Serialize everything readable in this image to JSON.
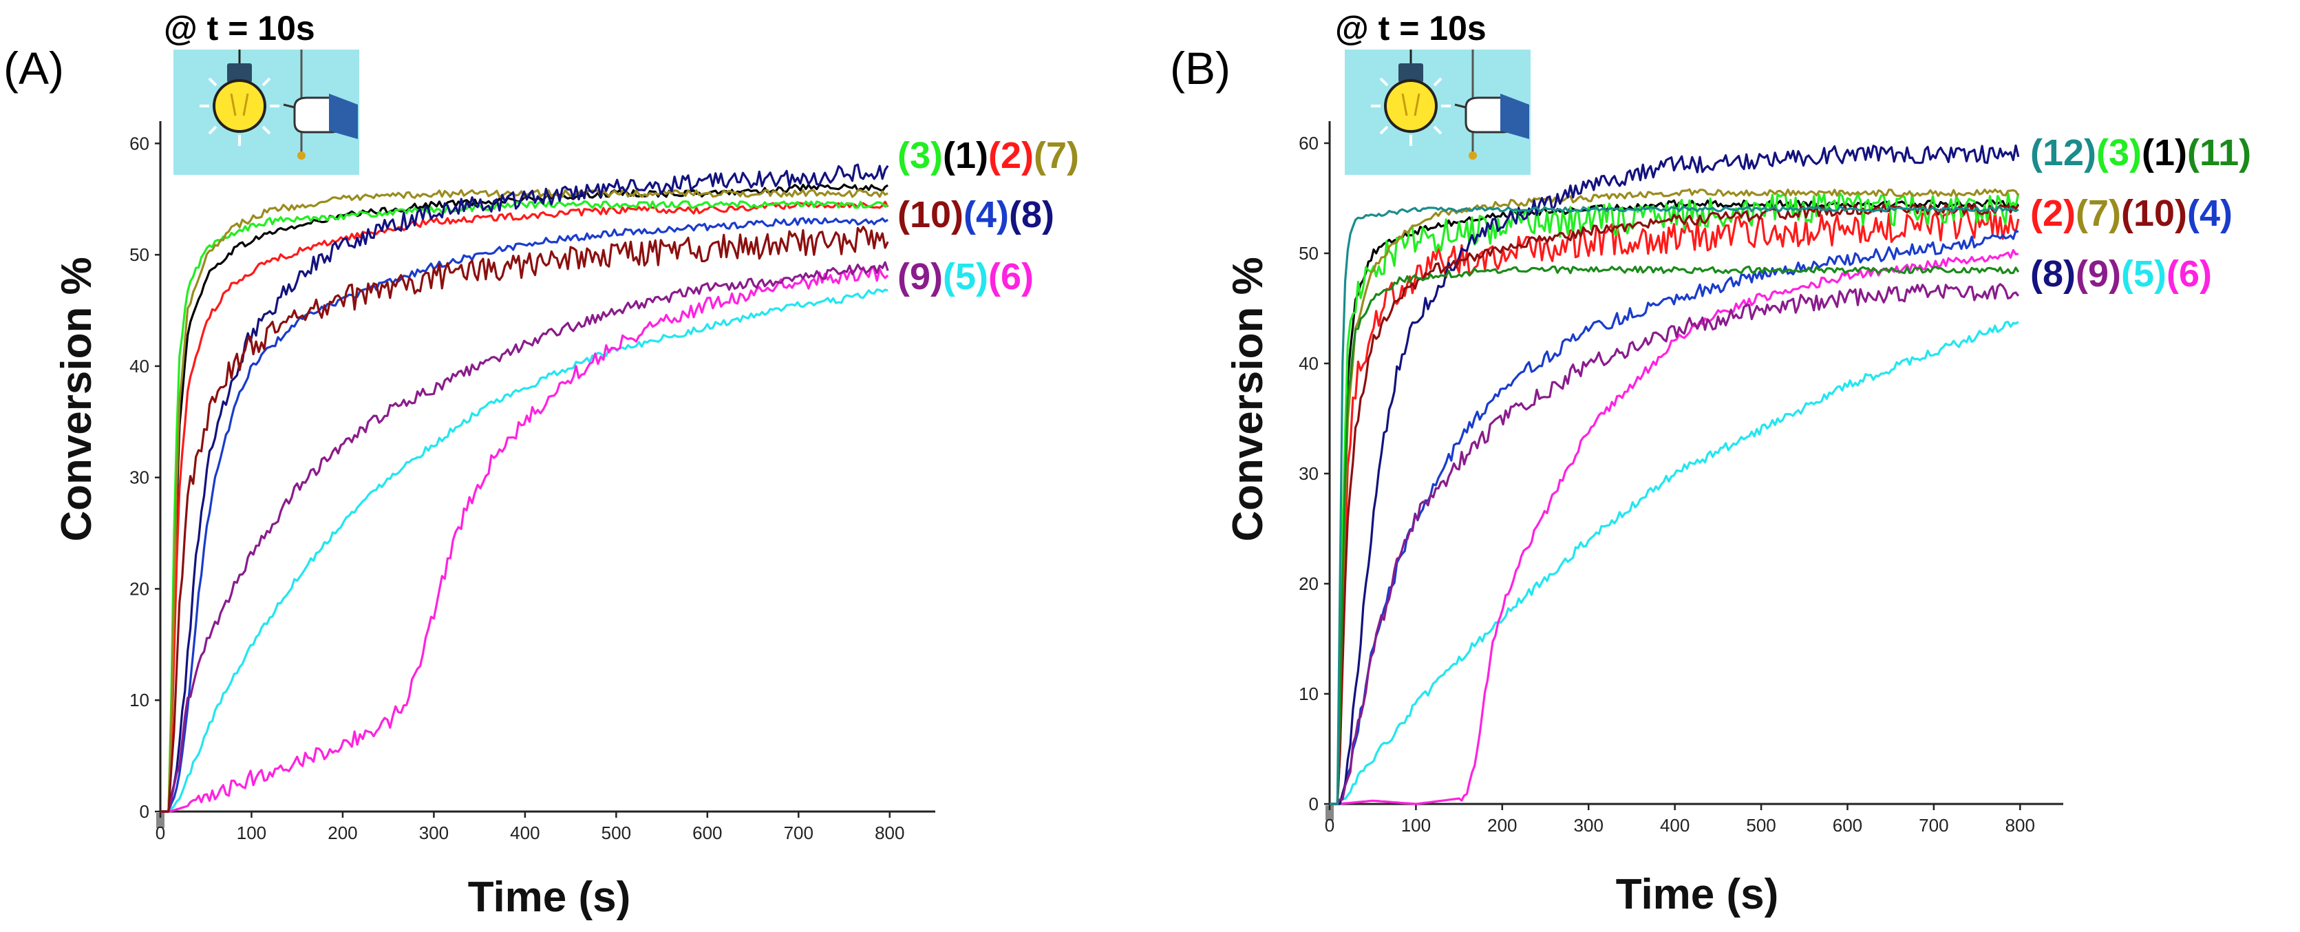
{
  "colors": {
    "axis": "#222222",
    "panel_bg": "#9ee6ec",
    "bulb": "#ffe52e",
    "s1": "#000000",
    "s2": "#ff1a1a",
    "s3": "#22ee22",
    "s4": "#1a3ccc",
    "s5": "#22e6f0",
    "s6": "#ff22e0",
    "s7": "#9a8c1e",
    "s8": "#13127f",
    "s9": "#8a1c8c",
    "s10": "#8c0f0f",
    "s11": "#1a8a1a",
    "s12": "#1a8c8c"
  },
  "icons": {
    "bulb": "light-bulb-icon",
    "hand": "hand-pull-switch-icon"
  },
  "chart_data": [
    {
      "type": "line",
      "panel_label": "(A)",
      "irradiation_label": "@ t = 10s",
      "xlabel": "Time (s)",
      "ylabel": "Conversion %",
      "xlim": [
        0,
        850
      ],
      "ylim": [
        0,
        62
      ],
      "xticks": [
        0,
        100,
        200,
        300,
        400,
        500,
        600,
        700,
        800
      ],
      "yticks": [
        0,
        10,
        20,
        30,
        40,
        50,
        60
      ],
      "legend_rows": [
        [
          {
            "text": "(3)",
            "color": "#22ee22"
          },
          {
            "text": "(1)",
            "color": "#000000"
          },
          {
            "text": "(2)",
            "color": "#ff1a1a"
          },
          {
            "text": "(7)",
            "color": "#9a8c1e"
          }
        ],
        [
          {
            "text": "(10)",
            "color": "#8c0f0f"
          },
          {
            "text": "(4)",
            "color": "#1a3ccc"
          },
          {
            "text": "(8)",
            "color": "#13127f"
          }
        ],
        [
          {
            "text": "(9)",
            "color": "#8a1c8c"
          },
          {
            "text": "(5)",
            "color": "#22e6f0"
          },
          {
            "text": "(6)",
            "color": "#ff22e0"
          }
        ]
      ],
      "series": [
        {
          "name": "(1)",
          "color": "#000000",
          "x": [
            0,
            10,
            15,
            20,
            30,
            50,
            80,
            120,
            200,
            300,
            400,
            500,
            600,
            700,
            800
          ],
          "y": [
            0,
            0,
            18,
            34,
            43,
            48,
            50.5,
            52,
            53.5,
            54.5,
            55,
            55.5,
            55.5,
            56,
            56
          ],
          "noise": 0.3
        },
        {
          "name": "(2)",
          "color": "#ff1a1a",
          "x": [
            0,
            10,
            15,
            20,
            30,
            50,
            80,
            120,
            200,
            300,
            400,
            500,
            600,
            700,
            800
          ],
          "y": [
            0,
            0,
            14,
            28,
            38,
            44,
            47.5,
            49.5,
            51.5,
            53,
            53.5,
            54,
            54,
            54.5,
            54.5
          ],
          "noise": 0.3
        },
        {
          "name": "(3)",
          "color": "#22ee22",
          "x": [
            0,
            10,
            15,
            20,
            30,
            50,
            80,
            120,
            200,
            300,
            400,
            500,
            600,
            700,
            800
          ],
          "y": [
            0,
            0,
            25,
            40,
            47,
            50.5,
            52,
            53,
            53.5,
            54,
            54.5,
            54.5,
            54.5,
            54.5,
            54.5
          ],
          "noise": 0.3
        },
        {
          "name": "(4)",
          "color": "#1a3ccc",
          "x": [
            0,
            10,
            20,
            30,
            40,
            50,
            60,
            80,
            100,
            150,
            200,
            300,
            400,
            500,
            600,
            700,
            800
          ],
          "y": [
            0,
            0,
            3,
            9,
            18,
            25,
            30,
            36,
            40,
            44,
            46,
            49,
            51,
            52,
            52.5,
            53,
            53
          ],
          "noise": 0.3
        },
        {
          "name": "(5)",
          "color": "#22e6f0",
          "x": [
            0,
            10,
            20,
            40,
            60,
            100,
            150,
            200,
            250,
            300,
            350,
            400,
            450,
            500,
            550,
            600,
            650,
            700,
            750,
            800
          ],
          "y": [
            0,
            0,
            1,
            5,
            9,
            15,
            21,
            26,
            30,
            33,
            36,
            38,
            40,
            41.5,
            42.5,
            43.5,
            44.5,
            45.5,
            46,
            47
          ],
          "noise": 0.3
        },
        {
          "name": "(6)",
          "color": "#ff22e0",
          "x": [
            0,
            10,
            30,
            50,
            100,
            150,
            200,
            250,
            270,
            280,
            290,
            300,
            320,
            340,
            360,
            380,
            400,
            450,
            500,
            550,
            600,
            650,
            700,
            750,
            800
          ],
          "y": [
            0,
            0,
            0.5,
            1,
            3,
            4.5,
            6,
            8,
            10,
            12,
            15,
            18,
            24,
            28,
            31,
            33,
            35,
            39,
            42,
            44,
            45.5,
            46.5,
            47.5,
            48,
            48.5
          ],
          "noise": 0.7
        },
        {
          "name": "(7)",
          "color": "#9a8c1e",
          "x": [
            0,
            10,
            15,
            20,
            30,
            50,
            80,
            120,
            200,
            300,
            400,
            500,
            600,
            700,
            800
          ],
          "y": [
            0,
            0,
            20,
            36,
            45,
            50,
            52.5,
            54,
            55,
            55.5,
            55.5,
            55.5,
            55.5,
            55.5,
            55.5
          ],
          "noise": 0.3
        },
        {
          "name": "(8)",
          "color": "#13127f",
          "x": [
            0,
            10,
            20,
            30,
            40,
            50,
            60,
            80,
            100,
            150,
            200,
            300,
            400,
            500,
            600,
            700,
            800
          ],
          "y": [
            0,
            0,
            5,
            14,
            24,
            30,
            34,
            39,
            43,
            48,
            51,
            54,
            55,
            56,
            56.5,
            57,
            57.5
          ],
          "noise": 0.8
        },
        {
          "name": "(9)",
          "color": "#8a1c8c",
          "x": [
            0,
            10,
            20,
            30,
            50,
            80,
            100,
            150,
            200,
            250,
            300,
            400,
            500,
            600,
            700,
            800
          ],
          "y": [
            0,
            0,
            4,
            10,
            15,
            20,
            23,
            29,
            33,
            36,
            38,
            42,
            45,
            47,
            48,
            49
          ],
          "noise": 0.5
        },
        {
          "name": "(10)",
          "color": "#8c0f0f",
          "x": [
            0,
            10,
            15,
            20,
            30,
            50,
            80,
            100,
            150,
            200,
            300,
            400,
            500,
            600,
            700,
            800
          ],
          "y": [
            0,
            0,
            8,
            18,
            28,
            35,
            40,
            42,
            44,
            46,
            48,
            49,
            50,
            50.5,
            51,
            51.5
          ],
          "noise": 1.2
        }
      ]
    },
    {
      "type": "line",
      "panel_label": "(B)",
      "irradiation_label": "@ t = 10s",
      "xlabel": "Time (s)",
      "ylabel": "Conversion %",
      "xlim": [
        0,
        850
      ],
      "ylim": [
        0,
        62
      ],
      "xticks": [
        0,
        100,
        200,
        300,
        400,
        500,
        600,
        700,
        800
      ],
      "yticks": [
        0,
        10,
        20,
        30,
        40,
        50,
        60
      ],
      "legend_rows": [
        [
          {
            "text": "(12)",
            "color": "#1a8c8c"
          },
          {
            "text": "(3)",
            "color": "#22ee22"
          },
          {
            "text": "(1)",
            "color": "#000000"
          },
          {
            "text": "(11)",
            "color": "#1a8a1a"
          }
        ],
        [
          {
            "text": "(2)",
            "color": "#ff1a1a"
          },
          {
            "text": "(7)",
            "color": "#9a8c1e"
          },
          {
            "text": "(10)",
            "color": "#8c0f0f"
          },
          {
            "text": "(4)",
            "color": "#1a3ccc"
          }
        ],
        [
          {
            "text": "(8)",
            "color": "#13127f"
          },
          {
            "text": "(9)",
            "color": "#8a1c8c"
          },
          {
            "text": "(5)",
            "color": "#22e6f0"
          },
          {
            "text": "(6)",
            "color": "#ff22e0"
          }
        ]
      ],
      "series": [
        {
          "name": "(1)",
          "color": "#000000",
          "x": [
            0,
            10,
            15,
            20,
            30,
            50,
            80,
            120,
            200,
            300,
            400,
            500,
            600,
            700,
            800
          ],
          "y": [
            0,
            0,
            20,
            38,
            46,
            50,
            51.5,
            52.5,
            53.5,
            54,
            54.5,
            54.5,
            54.5,
            54.5,
            54.5
          ],
          "noise": 0.3
        },
        {
          "name": "(2)",
          "color": "#ff1a1a",
          "x": [
            0,
            10,
            15,
            20,
            30,
            50,
            80,
            120,
            200,
            300,
            400,
            500,
            600,
            700,
            800
          ],
          "y": [
            0,
            0,
            15,
            30,
            38,
            44,
            47,
            49,
            50,
            51,
            51.5,
            52,
            52,
            52.5,
            52.5
          ],
          "noise": 1.5
        },
        {
          "name": "(3)",
          "color": "#22ee22",
          "x": [
            0,
            10,
            15,
            20,
            30,
            50,
            80,
            120,
            200,
            300,
            400,
            500,
            600,
            700,
            800
          ],
          "y": [
            0,
            0,
            25,
            40,
            46,
            49,
            50.5,
            51.5,
            52.5,
            53,
            53.5,
            54,
            54,
            54,
            54
          ],
          "noise": 1.5
        },
        {
          "name": "(4)",
          "color": "#1a3ccc",
          "x": [
            0,
            10,
            20,
            30,
            50,
            80,
            100,
            150,
            200,
            300,
            400,
            500,
            600,
            700,
            800
          ],
          "y": [
            0,
            0,
            2,
            6,
            14,
            22,
            26,
            33,
            38,
            43,
            46,
            48,
            49.5,
            50.5,
            51.5
          ],
          "noise": 0.6
        },
        {
          "name": "(5)",
          "color": "#22e6f0",
          "x": [
            0,
            10,
            20,
            50,
            100,
            150,
            200,
            250,
            300,
            350,
            400,
            450,
            500,
            550,
            600,
            650,
            700,
            750,
            800
          ],
          "y": [
            0,
            0,
            1,
            4,
            9,
            13,
            17,
            20.5,
            24,
            27,
            30,
            32,
            34,
            36,
            38,
            39.5,
            41,
            42.5,
            44
          ],
          "noise": 0.4
        },
        {
          "name": "(6)",
          "color": "#ff22e0",
          "x": [
            0,
            10,
            50,
            100,
            150,
            160,
            170,
            180,
            190,
            200,
            210,
            220,
            240,
            260,
            280,
            300,
            350,
            400,
            450,
            500,
            550,
            600,
            650,
            700,
            800
          ],
          "y": [
            0,
            0,
            0.3,
            0,
            0.5,
            1,
            4,
            10,
            15,
            18,
            20,
            22,
            25,
            28,
            31,
            34,
            38,
            42,
            44.5,
            46,
            47,
            48,
            48.5,
            49,
            50
          ],
          "noise": 0.4
        },
        {
          "name": "(7)",
          "color": "#9a8c1e",
          "x": [
            0,
            10,
            15,
            20,
            30,
            50,
            80,
            120,
            200,
            300,
            400,
            500,
            600,
            700,
            800
          ],
          "y": [
            0,
            0,
            18,
            34,
            43,
            48.5,
            51.5,
            53.5,
            54.5,
            55,
            55.5,
            55.5,
            55.5,
            55.5,
            55.5
          ],
          "noise": 0.3
        },
        {
          "name": "(8)",
          "color": "#13127f",
          "x": [
            0,
            10,
            20,
            30,
            40,
            50,
            60,
            80,
            100,
            150,
            200,
            300,
            400,
            500,
            600,
            700,
            800
          ],
          "y": [
            0,
            0,
            3,
            10,
            18,
            26,
            32,
            40,
            44,
            50,
            53,
            56,
            58,
            58.5,
            59,
            59,
            59
          ],
          "noise": 0.8
        },
        {
          "name": "(9)",
          "color": "#8a1c8c",
          "x": [
            0,
            10,
            20,
            30,
            50,
            80,
            100,
            150,
            200,
            300,
            400,
            500,
            600,
            700,
            800
          ],
          "y": [
            0,
            0,
            2,
            6,
            14,
            22,
            26,
            31,
            35,
            40,
            43,
            45,
            46,
            46.5,
            46.5
          ],
          "noise": 0.8
        },
        {
          "name": "(10)",
          "color": "#8c0f0f",
          "x": [
            0,
            10,
            15,
            20,
            30,
            50,
            80,
            120,
            200,
            300,
            400,
            500,
            600,
            700,
            800
          ],
          "y": [
            0,
            0,
            12,
            25,
            34,
            42,
            46,
            48.5,
            50.5,
            52,
            53,
            53.5,
            54,
            54,
            54
          ],
          "noise": 0.5
        },
        {
          "name": "(11)",
          "color": "#1a8a1a",
          "x": [
            0,
            10,
            15,
            20,
            30,
            50,
            80,
            120,
            200,
            300,
            400,
            500,
            600,
            700,
            800
          ],
          "y": [
            0,
            0,
            20,
            36,
            43,
            46,
            47.5,
            48,
            48.5,
            48.5,
            48.5,
            48.5,
            48.5,
            48.5,
            48.5
          ],
          "noise": 0.3
        },
        {
          "name": "(12)",
          "color": "#1a8c8c",
          "x": [
            0,
            10,
            13,
            16,
            20,
            25,
            30,
            50,
            100,
            200,
            300,
            400,
            500,
            600,
            700,
            800
          ],
          "y": [
            0,
            0,
            30,
            45,
            50,
            52,
            53,
            53.5,
            54,
            54,
            54,
            54,
            54,
            54,
            54,
            54
          ],
          "noise": 0.2
        }
      ]
    }
  ]
}
